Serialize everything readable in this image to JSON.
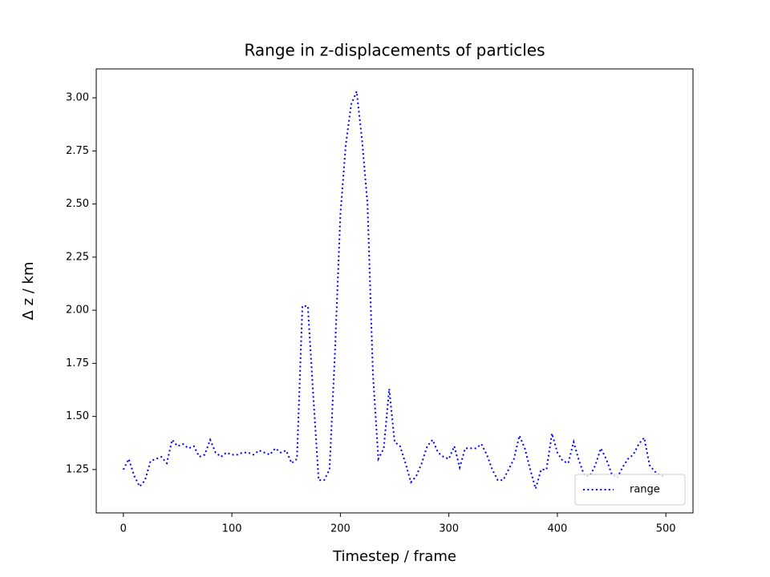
{
  "chart_data": {
    "type": "line",
    "title": "Range in z-displacements of particles",
    "xlabel": "Timestep / frame",
    "ylabel": "Δ z / km",
    "x": [
      0,
      5,
      10,
      15,
      20,
      25,
      30,
      35,
      40,
      45,
      50,
      55,
      60,
      65,
      70,
      75,
      80,
      85,
      90,
      95,
      100,
      105,
      110,
      115,
      120,
      125,
      130,
      135,
      140,
      145,
      150,
      155,
      160,
      165,
      170,
      175,
      180,
      185,
      190,
      195,
      200,
      205,
      210,
      215,
      220,
      225,
      230,
      235,
      240,
      245,
      250,
      255,
      260,
      265,
      270,
      275,
      280,
      285,
      290,
      295,
      300,
      305,
      310,
      315,
      320,
      325,
      330,
      335,
      340,
      345,
      350,
      355,
      360,
      365,
      370,
      375,
      380,
      385,
      390,
      395,
      400,
      405,
      410,
      415,
      420,
      425,
      430,
      435,
      440,
      445,
      450,
      455,
      460,
      465,
      470,
      475,
      480,
      485,
      490,
      495,
      500
    ],
    "series": [
      {
        "name": "range",
        "color": "#0000ff",
        "style": "dotted",
        "values": [
          1.25,
          1.3,
          1.22,
          1.17,
          1.2,
          1.29,
          1.3,
          1.31,
          1.28,
          1.39,
          1.36,
          1.37,
          1.35,
          1.36,
          1.31,
          1.32,
          1.39,
          1.33,
          1.31,
          1.33,
          1.32,
          1.32,
          1.33,
          1.33,
          1.32,
          1.34,
          1.33,
          1.32,
          1.35,
          1.33,
          1.34,
          1.28,
          1.3,
          2.02,
          2.02,
          1.6,
          1.2,
          1.2,
          1.25,
          1.8,
          2.45,
          2.78,
          2.97,
          3.03,
          2.8,
          2.5,
          1.7,
          1.3,
          1.35,
          1.63,
          1.38,
          1.36,
          1.28,
          1.19,
          1.22,
          1.28,
          1.36,
          1.39,
          1.33,
          1.31,
          1.3,
          1.36,
          1.26,
          1.35,
          1.35,
          1.35,
          1.37,
          1.32,
          1.25,
          1.2,
          1.2,
          1.25,
          1.3,
          1.41,
          1.35,
          1.25,
          1.16,
          1.25,
          1.25,
          1.42,
          1.33,
          1.29,
          1.28,
          1.38,
          1.29,
          1.22,
          1.22,
          1.27,
          1.35,
          1.3,
          1.23,
          1.21,
          1.26,
          1.3,
          1.32,
          1.37,
          1.4,
          1.27,
          1.24,
          1.22,
          1.22
        ]
      }
    ],
    "xlim": [
      -25,
      525
    ],
    "xticks": [
      0,
      100,
      200,
      300,
      400,
      500
    ],
    "ylim": [
      1.046,
      3.136
    ],
    "yticks": [
      1.25,
      {
        "value": 1.5,
        "label": "1.50"
      },
      1.75,
      {
        "value": 2,
        "label": "2.00"
      },
      2.25,
      {
        "value": 2.5,
        "label": "2.50"
      },
      2.75,
      {
        "value": 3,
        "label": "3.00"
      }
    ],
    "legend": "lower right"
  }
}
